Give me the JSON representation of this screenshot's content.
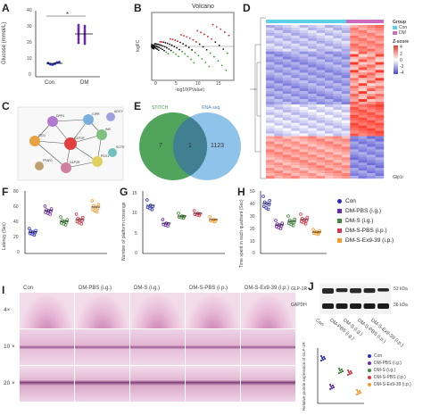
{
  "panels": {
    "A": "A",
    "B": "B",
    "C": "C",
    "D": "D",
    "E": "E",
    "F": "F",
    "G": "G",
    "H": "H",
    "I": "I",
    "J": "J"
  },
  "colors": {
    "con": "#2b2dbf",
    "dm_pbs": "#6b2aa8",
    "dm_s": "#3f8a3a",
    "dm_s_pbs": "#d4364b",
    "dm_s_ex": "#f59b2b",
    "heat_low": "#4a4ad0",
    "heat_high": "#e63a2a",
    "group_con": "#5bd0e8",
    "group_dm": "#cc6ac0",
    "venn_left": "#3e9a4a",
    "venn_right": "#7cb8e6",
    "venn_overlap": "#3b7a8a"
  },
  "A": {
    "ylabel": "Glucose (mmol/L)",
    "y_ticks": [
      "0",
      "10",
      "20",
      "30",
      "40"
    ],
    "x_labels": [
      "Con",
      "DM"
    ],
    "sig": "*"
  },
  "B": {
    "title": "Volcano",
    "ylabel": "logFC",
    "xlabel": "-log10(PValue)",
    "x_ticks": [
      "0",
      "5",
      "10",
      "15"
    ],
    "y_ticks": [
      "8",
      "4",
      "0",
      "-4"
    ]
  },
  "C": {
    "nodes": [
      "GLP1R",
      "GCG",
      "GIPR",
      "DPP4",
      "INS",
      "PDX1",
      "GLP2R",
      "SCTR",
      "FFAR1",
      "ADCY"
    ]
  },
  "D": {
    "legend_group": "Group",
    "legend_con": "Con",
    "legend_dm": "DM",
    "legend_z": "Z-score",
    "z_ticks": [
      "4",
      "2",
      "0",
      "-2",
      "-4"
    ],
    "gene_label": "Glp1r"
  },
  "E": {
    "left_label": "STITCH",
    "right_label": "RNA-seq",
    "left_count": "7",
    "overlap_count": "1",
    "right_count": "1123"
  },
  "F": {
    "ylabel": "Latency (Sec)",
    "y_ticks": [
      "80",
      "60",
      "40",
      "20",
      "0"
    ]
  },
  "G": {
    "ylabel": "Number of platform crossings",
    "y_ticks": [
      "15",
      "10",
      "5",
      "0"
    ]
  },
  "H": {
    "ylabel": "Time spent in each quadrant (Sec)",
    "y_ticks": [
      "50",
      "40",
      "30",
      "20",
      "10",
      "0"
    ]
  },
  "groups_legend": [
    {
      "label": "Con",
      "color": "#2b2dbf",
      "shape": "circle"
    },
    {
      "label": "DM-PBS (i.g.)",
      "color": "#6b2aa8",
      "shape": "square"
    },
    {
      "label": "DM-S (i.g.)",
      "color": "#3f8a3a",
      "shape": "triangle"
    },
    {
      "label": "DM-S-PBS (i.p.)",
      "color": "#d4364b",
      "shape": "triangle-down"
    },
    {
      "label": "DM-S-Ex9-39 (i.p.)",
      "color": "#f59b2b",
      "shape": "diamond"
    }
  ],
  "I": {
    "cols": [
      "Con",
      "DM-PBS (i.g.)",
      "DM-S (i.g.)",
      "DM-S-PBS (i.p.)",
      "DM-S-Ex9-39 (i.p.)"
    ],
    "rows": [
      "4×",
      "10 ×",
      "20 ×"
    ]
  },
  "J": {
    "blot_labels": [
      "GLP-1R",
      "GAPDH"
    ],
    "kda": [
      "53 kDa",
      "36 kDa"
    ],
    "lane_labels": [
      "Con",
      "DM-PBS (i.g.)",
      "DM-S (i.g.)",
      "DM-S-PBS (i.p.)",
      "DM-S-Ex9-39 (i.p.)"
    ],
    "ylabel": "Relative protein expression of GLP-1R",
    "legend": [
      "Con",
      "DM-PBS (i.g.)",
      "DM-S (i.g.)",
      "DM-S-PBS (i.p.)",
      "DM-S-Ex9-39 (i.p.)"
    ]
  }
}
